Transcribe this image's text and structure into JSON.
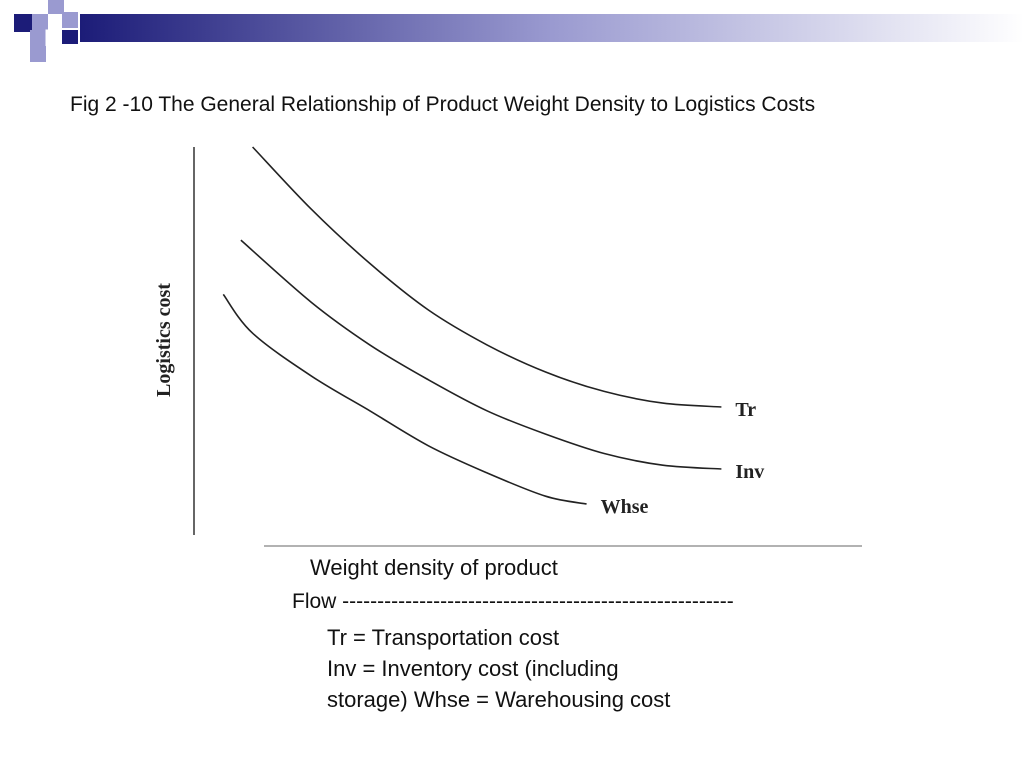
{
  "slide": {
    "title": "Fig 2 -10 The General Relationship of Product Weight Density to Logistics Costs",
    "flow_text": "Flow --------------------------------------------------------",
    "legend_lines": [
      "Tr = Transportation cost",
      "Inv = Inventory cost (including storage) Whse = Warehousing cost"
    ],
    "colors": {
      "banner_dark": "#1c1c78",
      "banner_light": "#ffffff",
      "deco_dark": "#1c1c78",
      "deco_light": "#9a9ad0",
      "curve": "#222222"
    }
  },
  "chart_data": {
    "type": "line",
    "title": "Fig 2 -10 The General Relationship of Product Weight Density to Logistics Costs",
    "xlabel": "Weight density of product",
    "ylabel": "Logistics cost",
    "xlim": [
      0,
      100
    ],
    "ylim": [
      0,
      100
    ],
    "grid": false,
    "axis_ticks": false,
    "series": [
      {
        "name": "Tr",
        "x": [
          10,
          20,
          30,
          40,
          50,
          60,
          70,
          80,
          90
        ],
        "values": [
          100,
          84,
          70,
          58,
          49,
          42,
          37,
          34,
          33
        ]
      },
      {
        "name": "Inv",
        "x": [
          8,
          20,
          30,
          40,
          50,
          60,
          70,
          80,
          90
        ],
        "values": [
          76,
          60,
          49,
          40,
          32,
          26,
          21,
          18,
          17
        ]
      },
      {
        "name": "Whse",
        "x": [
          5,
          10,
          20,
          30,
          40,
          50,
          60,
          67
        ],
        "values": [
          62,
          52,
          41,
          32,
          23,
          16,
          10,
          8
        ]
      }
    ]
  }
}
